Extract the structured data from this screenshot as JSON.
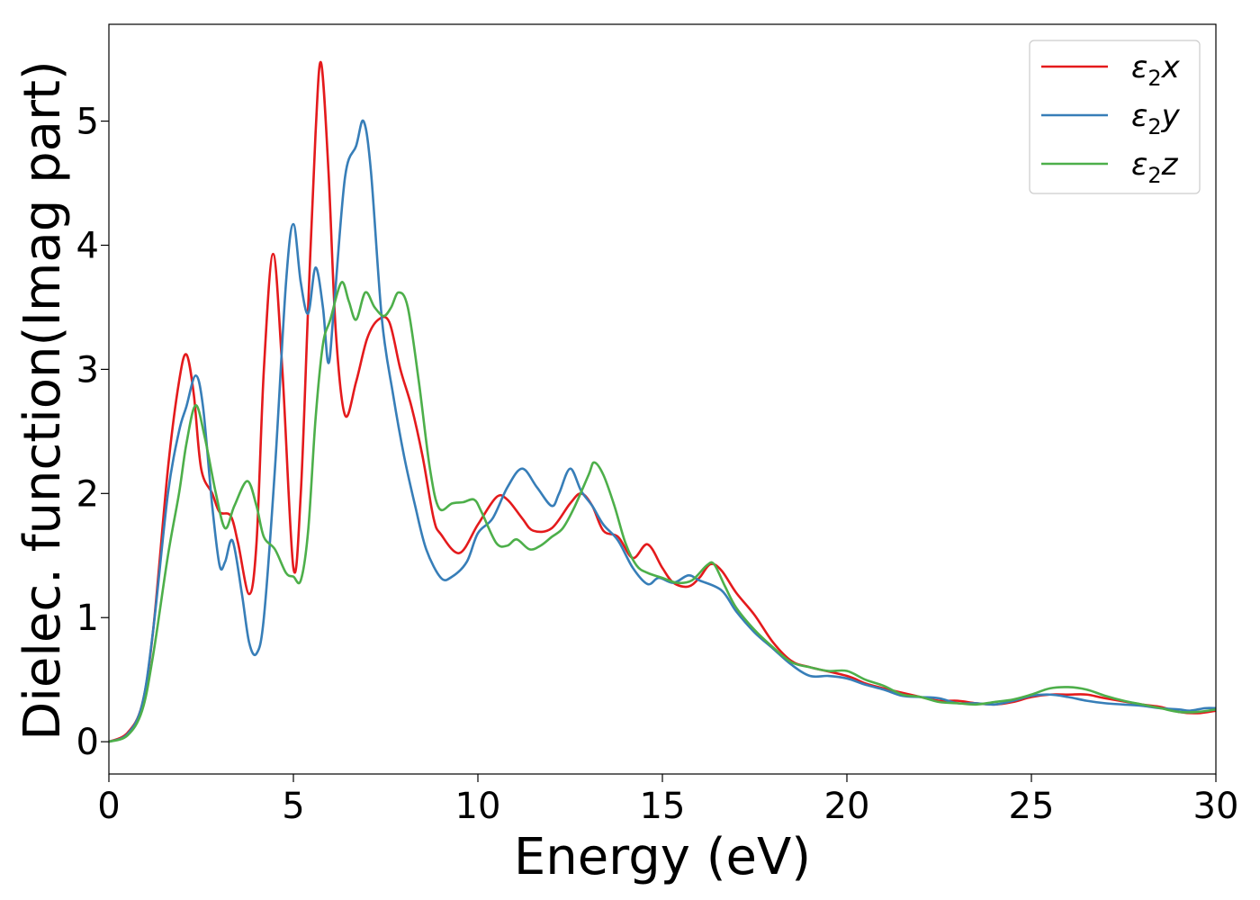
{
  "chart_data": {
    "type": "line",
    "title": "",
    "xlabel": "Energy (eV)",
    "ylabel": "Dielec. function(Imag part)",
    "xlim": [
      0,
      30
    ],
    "ylim": [
      -0.26,
      5.78
    ],
    "xticks": [
      "0",
      "5",
      "10",
      "15",
      "20",
      "25",
      "30"
    ],
    "yticks": [
      "0",
      "1",
      "2",
      "3",
      "4",
      "5"
    ],
    "grid": false,
    "legend_position": "top-right",
    "series": [
      {
        "name": "ε₂x",
        "legend_base": "ε",
        "legend_sub": "2",
        "legend_suffix": "x",
        "color": "#e41a1c",
        "points": [
          [
            0,
            0
          ],
          [
            0.5,
            0.07
          ],
          [
            0.9,
            0.3
          ],
          [
            1.2,
            0.9
          ],
          [
            1.6,
            2.2
          ],
          [
            1.9,
            2.9
          ],
          [
            2.1,
            3.12
          ],
          [
            2.3,
            2.8
          ],
          [
            2.5,
            2.2
          ],
          [
            2.8,
            2.0
          ],
          [
            3.0,
            1.85
          ],
          [
            3.3,
            1.82
          ],
          [
            3.5,
            1.6
          ],
          [
            3.8,
            1.19
          ],
          [
            4.0,
            1.6
          ],
          [
            4.2,
            3.0
          ],
          [
            4.45,
            3.93
          ],
          [
            4.7,
            3.0
          ],
          [
            5.0,
            1.4
          ],
          [
            5.2,
            2.0
          ],
          [
            5.4,
            3.5
          ],
          [
            5.6,
            4.9
          ],
          [
            5.75,
            5.47
          ],
          [
            5.95,
            4.6
          ],
          [
            6.15,
            3.3
          ],
          [
            6.4,
            2.63
          ],
          [
            6.7,
            2.9
          ],
          [
            7.0,
            3.25
          ],
          [
            7.3,
            3.4
          ],
          [
            7.6,
            3.38
          ],
          [
            7.9,
            3.0
          ],
          [
            8.2,
            2.7
          ],
          [
            8.5,
            2.3
          ],
          [
            8.8,
            1.8
          ],
          [
            9.0,
            1.67
          ],
          [
            9.5,
            1.52
          ],
          [
            10.0,
            1.75
          ],
          [
            10.5,
            1.97
          ],
          [
            10.8,
            1.95
          ],
          [
            11.2,
            1.8
          ],
          [
            11.5,
            1.7
          ],
          [
            12.0,
            1.72
          ],
          [
            12.5,
            1.92
          ],
          [
            12.8,
            2.0
          ],
          [
            13.1,
            1.9
          ],
          [
            13.4,
            1.7
          ],
          [
            13.8,
            1.65
          ],
          [
            14.2,
            1.48
          ],
          [
            14.6,
            1.59
          ],
          [
            15.0,
            1.4
          ],
          [
            15.3,
            1.28
          ],
          [
            15.7,
            1.25
          ],
          [
            16.0,
            1.32
          ],
          [
            16.3,
            1.43
          ],
          [
            16.6,
            1.38
          ],
          [
            17.0,
            1.2
          ],
          [
            17.5,
            1.02
          ],
          [
            18.0,
            0.8
          ],
          [
            18.5,
            0.65
          ],
          [
            19.0,
            0.6
          ],
          [
            20.0,
            0.53
          ],
          [
            20.5,
            0.47
          ],
          [
            21.0,
            0.43
          ],
          [
            22.0,
            0.36
          ],
          [
            22.5,
            0.33
          ],
          [
            23.0,
            0.33
          ],
          [
            23.5,
            0.31
          ],
          [
            24.0,
            0.3
          ],
          [
            24.5,
            0.32
          ],
          [
            25.0,
            0.36
          ],
          [
            25.5,
            0.38
          ],
          [
            26.0,
            0.38
          ],
          [
            26.5,
            0.38
          ],
          [
            27.0,
            0.35
          ],
          [
            28.0,
            0.3
          ],
          [
            28.5,
            0.28
          ],
          [
            29.0,
            0.24
          ],
          [
            29.5,
            0.23
          ],
          [
            30.0,
            0.25
          ]
        ]
      },
      {
        "name": "ε₂y",
        "legend_base": "ε",
        "legend_sub": "2",
        "legend_suffix": "y",
        "color": "#377eb8",
        "points": [
          [
            0,
            0
          ],
          [
            0.5,
            0.06
          ],
          [
            0.9,
            0.3
          ],
          [
            1.2,
            0.9
          ],
          [
            1.6,
            2.0
          ],
          [
            1.9,
            2.5
          ],
          [
            2.1,
            2.7
          ],
          [
            2.35,
            2.95
          ],
          [
            2.55,
            2.7
          ],
          [
            2.8,
            1.9
          ],
          [
            3.0,
            1.42
          ],
          [
            3.15,
            1.45
          ],
          [
            3.35,
            1.62
          ],
          [
            3.6,
            1.2
          ],
          [
            3.8,
            0.8
          ],
          [
            4.0,
            0.71
          ],
          [
            4.2,
            1.0
          ],
          [
            4.5,
            2.2
          ],
          [
            4.8,
            3.7
          ],
          [
            5.0,
            4.17
          ],
          [
            5.2,
            3.7
          ],
          [
            5.4,
            3.45
          ],
          [
            5.6,
            3.82
          ],
          [
            5.8,
            3.5
          ],
          [
            5.95,
            3.05
          ],
          [
            6.1,
            3.5
          ],
          [
            6.4,
            4.55
          ],
          [
            6.7,
            4.8
          ],
          [
            6.9,
            5.0
          ],
          [
            7.1,
            4.6
          ],
          [
            7.4,
            3.4
          ],
          [
            7.7,
            2.8
          ],
          [
            8.0,
            2.3
          ],
          [
            8.3,
            1.9
          ],
          [
            8.6,
            1.55
          ],
          [
            9.0,
            1.32
          ],
          [
            9.3,
            1.33
          ],
          [
            9.7,
            1.45
          ],
          [
            10.0,
            1.68
          ],
          [
            10.4,
            1.8
          ],
          [
            10.8,
            2.05
          ],
          [
            11.2,
            2.2
          ],
          [
            11.6,
            2.05
          ],
          [
            12.0,
            1.9
          ],
          [
            12.2,
            2.0
          ],
          [
            12.5,
            2.2
          ],
          [
            12.8,
            2.02
          ],
          [
            13.1,
            1.9
          ],
          [
            13.4,
            1.75
          ],
          [
            13.8,
            1.62
          ],
          [
            14.2,
            1.4
          ],
          [
            14.6,
            1.27
          ],
          [
            14.9,
            1.32
          ],
          [
            15.3,
            1.28
          ],
          [
            15.7,
            1.34
          ],
          [
            16.0,
            1.3
          ],
          [
            16.6,
            1.22
          ],
          [
            17.0,
            1.05
          ],
          [
            17.5,
            0.88
          ],
          [
            18.0,
            0.75
          ],
          [
            18.5,
            0.62
          ],
          [
            19.0,
            0.53
          ],
          [
            19.5,
            0.53
          ],
          [
            20.0,
            0.51
          ],
          [
            20.5,
            0.46
          ],
          [
            21.0,
            0.42
          ],
          [
            21.5,
            0.37
          ],
          [
            22.0,
            0.36
          ],
          [
            22.5,
            0.35
          ],
          [
            23.0,
            0.31
          ],
          [
            23.5,
            0.31
          ],
          [
            24.0,
            0.3
          ],
          [
            24.5,
            0.33
          ],
          [
            25.0,
            0.37
          ],
          [
            25.5,
            0.38
          ],
          [
            26.0,
            0.36
          ],
          [
            26.5,
            0.33
          ],
          [
            27.0,
            0.31
          ],
          [
            27.5,
            0.3
          ],
          [
            28.0,
            0.29
          ],
          [
            28.5,
            0.27
          ],
          [
            29.0,
            0.26
          ],
          [
            29.3,
            0.25
          ],
          [
            29.7,
            0.27
          ],
          [
            30.0,
            0.27
          ]
        ]
      },
      {
        "name": "ε₂z",
        "legend_base": "ε",
        "legend_sub": "2",
        "legend_suffix": "z",
        "color": "#4daf4a",
        "points": [
          [
            0,
            0
          ],
          [
            0.5,
            0.05
          ],
          [
            0.9,
            0.25
          ],
          [
            1.2,
            0.7
          ],
          [
            1.6,
            1.5
          ],
          [
            1.9,
            2.0
          ],
          [
            2.1,
            2.4
          ],
          [
            2.35,
            2.71
          ],
          [
            2.6,
            2.45
          ],
          [
            2.9,
            2.0
          ],
          [
            3.15,
            1.72
          ],
          [
            3.4,
            1.9
          ],
          [
            3.75,
            2.1
          ],
          [
            4.0,
            1.9
          ],
          [
            4.2,
            1.65
          ],
          [
            4.5,
            1.55
          ],
          [
            4.8,
            1.36
          ],
          [
            5.0,
            1.33
          ],
          [
            5.2,
            1.3
          ],
          [
            5.4,
            1.7
          ],
          [
            5.6,
            2.6
          ],
          [
            5.8,
            3.2
          ],
          [
            6.0,
            3.4
          ],
          [
            6.3,
            3.7
          ],
          [
            6.5,
            3.55
          ],
          [
            6.7,
            3.4
          ],
          [
            6.95,
            3.62
          ],
          [
            7.2,
            3.5
          ],
          [
            7.45,
            3.43
          ],
          [
            7.65,
            3.5
          ],
          [
            7.85,
            3.62
          ],
          [
            8.1,
            3.5
          ],
          [
            8.4,
            2.9
          ],
          [
            8.7,
            2.2
          ],
          [
            8.95,
            1.88
          ],
          [
            9.3,
            1.92
          ],
          [
            9.6,
            1.93
          ],
          [
            9.9,
            1.95
          ],
          [
            10.1,
            1.85
          ],
          [
            10.5,
            1.6
          ],
          [
            10.8,
            1.58
          ],
          [
            11.05,
            1.63
          ],
          [
            11.4,
            1.55
          ],
          [
            11.7,
            1.58
          ],
          [
            12.0,
            1.65
          ],
          [
            12.3,
            1.72
          ],
          [
            12.6,
            1.88
          ],
          [
            13.0,
            2.15
          ],
          [
            13.15,
            2.25
          ],
          [
            13.4,
            2.15
          ],
          [
            13.7,
            1.9
          ],
          [
            14.0,
            1.6
          ],
          [
            14.3,
            1.42
          ],
          [
            14.6,
            1.36
          ],
          [
            15.0,
            1.32
          ],
          [
            15.4,
            1.28
          ],
          [
            15.8,
            1.3
          ],
          [
            16.2,
            1.42
          ],
          [
            16.4,
            1.43
          ],
          [
            16.7,
            1.25
          ],
          [
            17.0,
            1.08
          ],
          [
            17.5,
            0.9
          ],
          [
            18.0,
            0.76
          ],
          [
            18.5,
            0.64
          ],
          [
            19.0,
            0.6
          ],
          [
            19.5,
            0.57
          ],
          [
            20.0,
            0.57
          ],
          [
            20.5,
            0.5
          ],
          [
            21.0,
            0.45
          ],
          [
            21.5,
            0.38
          ],
          [
            22.0,
            0.36
          ],
          [
            22.5,
            0.32
          ],
          [
            23.0,
            0.31
          ],
          [
            23.5,
            0.3
          ],
          [
            24.0,
            0.32
          ],
          [
            24.5,
            0.34
          ],
          [
            25.0,
            0.38
          ],
          [
            25.5,
            0.43
          ],
          [
            26.0,
            0.44
          ],
          [
            26.5,
            0.42
          ],
          [
            27.0,
            0.37
          ],
          [
            27.5,
            0.33
          ],
          [
            28.0,
            0.3
          ],
          [
            28.5,
            0.27
          ],
          [
            29.0,
            0.24
          ],
          [
            29.5,
            0.24
          ],
          [
            30.0,
            0.26
          ]
        ]
      }
    ]
  }
}
